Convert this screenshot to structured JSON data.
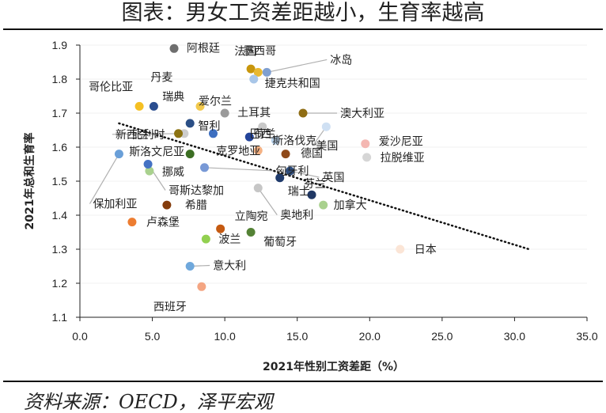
{
  "page": {
    "title": "图表：男女工资差距越小，生育率越高",
    "source": "资料来源：OECD，泽平宏观"
  },
  "colors": {
    "grid": "#f0f0f0",
    "leader": "#b0b0b0",
    "trendline": "#111111"
  },
  "chart_data": {
    "type": "scatter",
    "xlabel": "2021年性别工资差距（%）",
    "ylabel": "2021年总和生育率",
    "xlim": [
      0,
      35
    ],
    "ylim": [
      1.1,
      1.9
    ],
    "x_ticks": [
      "0.0",
      "5.0",
      "10.0",
      "15.0",
      "20.0",
      "25.0",
      "30.0",
      "35.0"
    ],
    "y_ticks": [
      "1.1",
      "1.2",
      "1.3",
      "1.4",
      "1.5",
      "1.6",
      "1.7",
      "1.8",
      "1.9"
    ],
    "trendline": {
      "style": "dotted",
      "from": [
        2.7,
        1.67
      ],
      "to": [
        31.0,
        1.3
      ]
    },
    "points": [
      {
        "name": "阿根廷",
        "x": 6.5,
        "y": 1.89,
        "color": "#6e6e6e"
      },
      {
        "name": "墨西哥",
        "x": 11.8,
        "y": 1.83,
        "color": "#c8960c"
      },
      {
        "name": "冰岛",
        "x": 12.9,
        "y": 1.82,
        "color": "#7f9fd0"
      },
      {
        "name": "丹麦",
        "x": 5.1,
        "y": 1.72,
        "color": "#2a4d8f"
      },
      {
        "name": "法国",
        "x": 12.3,
        "y": 1.82,
        "color": "#e8b830"
      },
      {
        "name": "捷克共和国",
        "x": 12.0,
        "y": 1.8,
        "color": "#a8c6e8"
      },
      {
        "name": "哥伦比亚",
        "x": 4.1,
        "y": 1.72,
        "color": "#f5c023"
      },
      {
        "name": "爱尔兰",
        "x": 8.3,
        "y": 1.72,
        "color": "#f2c94c"
      },
      {
        "name": "瑞典",
        "x": 7.6,
        "y": 1.67,
        "color": "#2b4f86"
      },
      {
        "name": "土耳其",
        "x": 10.0,
        "y": 1.7,
        "color": "#9a9a9a"
      },
      {
        "name": "澳大利亚",
        "x": 15.4,
        "y": 1.7,
        "color": "#8f6d14"
      },
      {
        "name": "荷兰",
        "x": 12.6,
        "y": 1.66,
        "color": "#c9c9c9"
      },
      {
        "name": "新西兰",
        "x": 7.2,
        "y": 1.64,
        "color": "#cdcdcd"
      },
      {
        "name": "智利",
        "x": 9.2,
        "y": 1.64,
        "color": "#3d6fc0"
      },
      {
        "name": "比利时",
        "x": 6.8,
        "y": 1.64,
        "color": "#8c7312"
      },
      {
        "name": "巴西",
        "x": 11.7,
        "y": 1.63,
        "color": "#23449a"
      },
      {
        "name": "斯洛伐克",
        "x": 13.5,
        "y": 1.62,
        "color": "#b9d3ec"
      },
      {
        "name": "爱沙尼亚",
        "x": 19.7,
        "y": 1.61,
        "color": "#f4b7b2"
      },
      {
        "name": "美国",
        "x": 17.0,
        "y": 1.66,
        "color": "#cfe0f3"
      },
      {
        "name": "拉脱维亚",
        "x": 19.8,
        "y": 1.57,
        "color": "#d6d6d6"
      },
      {
        "name": "斯洛文尼亚",
        "x": 7.6,
        "y": 1.58,
        "color": "#3c6e23"
      },
      {
        "name": "克罗地亚",
        "x": 12.3,
        "y": 1.59,
        "color": "#f4b183"
      },
      {
        "name": "德国",
        "x": 14.2,
        "y": 1.58,
        "color": "#8f4a1a"
      },
      {
        "name": "保加利亚",
        "x": 2.7,
        "y": 1.58,
        "color": "#6a9fd8"
      },
      {
        "name": "挪威",
        "x": 4.8,
        "y": 1.53,
        "color": "#a9d18e"
      },
      {
        "name": "哥斯达黎加",
        "x": 4.7,
        "y": 1.55,
        "color": "#4472c4"
      },
      {
        "name": "匈牙利",
        "x": 8.6,
        "y": 1.54,
        "color": "#7899d6"
      },
      {
        "name": "英国",
        "x": 14.5,
        "y": 1.53,
        "color": "#2e4d7d"
      },
      {
        "name": "瑞士",
        "x": 13.8,
        "y": 1.51,
        "color": "#1f3a6b"
      },
      {
        "name": "奥地利",
        "x": 12.3,
        "y": 1.48,
        "color": "#c6c6c6"
      },
      {
        "name": "芬兰",
        "x": 16.0,
        "y": 1.46,
        "color": "#203864"
      },
      {
        "name": "加拿大",
        "x": 16.8,
        "y": 1.43,
        "color": "#a9d18e"
      },
      {
        "name": "希腊",
        "x": 6.0,
        "y": 1.43,
        "color": "#843c0c"
      },
      {
        "name": "卢森堡",
        "x": 3.6,
        "y": 1.38,
        "color": "#ed7d31"
      },
      {
        "name": "立陶宛",
        "x": 9.7,
        "y": 1.36,
        "color": "#c55a11"
      },
      {
        "name": "葡萄牙",
        "x": 11.8,
        "y": 1.35,
        "color": "#548235"
      },
      {
        "name": "波兰",
        "x": 8.7,
        "y": 1.33,
        "color": "#92d050"
      },
      {
        "name": "日本",
        "x": 22.1,
        "y": 1.3,
        "color": "#fbe5d6"
      },
      {
        "name": "意大利",
        "x": 7.6,
        "y": 1.25,
        "color": "#6fa8dc"
      },
      {
        "name": "西班牙",
        "x": 8.4,
        "y": 1.19,
        "color": "#f4a582"
      }
    ]
  }
}
